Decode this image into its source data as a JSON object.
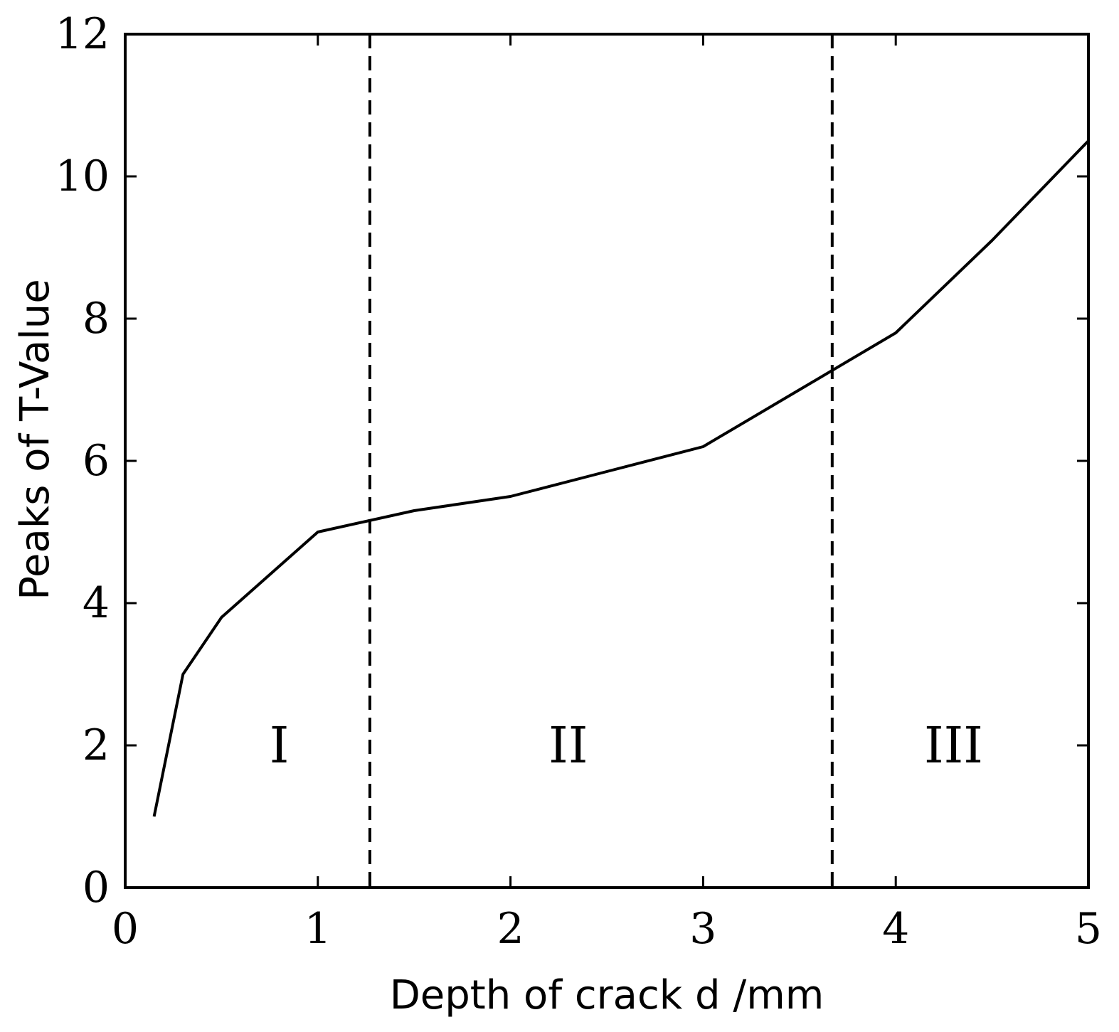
{
  "chart_data": {
    "type": "line",
    "xlabel": "Depth of crack d /mm",
    "ylabel": "Peaks of T-Value",
    "xlim": [
      0,
      5
    ],
    "ylim": [
      0,
      12
    ],
    "xticks": [
      0,
      1,
      2,
      3,
      4,
      5
    ],
    "yticks": [
      0,
      2,
      4,
      6,
      8,
      10,
      12
    ],
    "xtick_labels": [
      "0",
      "1",
      "2",
      "3",
      "4",
      "5"
    ],
    "ytick_labels": [
      "0",
      "2",
      "4",
      "6",
      "8",
      "10",
      "12"
    ],
    "grid": false,
    "series": [
      {
        "x": [
          0.15,
          0.3,
          0.5,
          1.0,
          1.5,
          2.0,
          2.5,
          3.0,
          3.5,
          4.0,
          4.5,
          5.0
        ],
        "y": [
          1.0,
          3.0,
          3.8,
          5.0,
          5.3,
          5.5,
          5.85,
          6.2,
          7.0,
          7.8,
          9.1,
          10.5
        ],
        "color": "#000000"
      }
    ],
    "boundaries": [
      {
        "x": 1.27,
        "style": "dashed"
      },
      {
        "x": 3.67,
        "style": "dashed"
      }
    ],
    "regions": [
      {
        "label": "I",
        "x": 0.8,
        "y": 2.0
      },
      {
        "label": "II",
        "x": 2.3,
        "y": 2.0
      },
      {
        "label": "III",
        "x": 4.3,
        "y": 2.0
      }
    ]
  }
}
